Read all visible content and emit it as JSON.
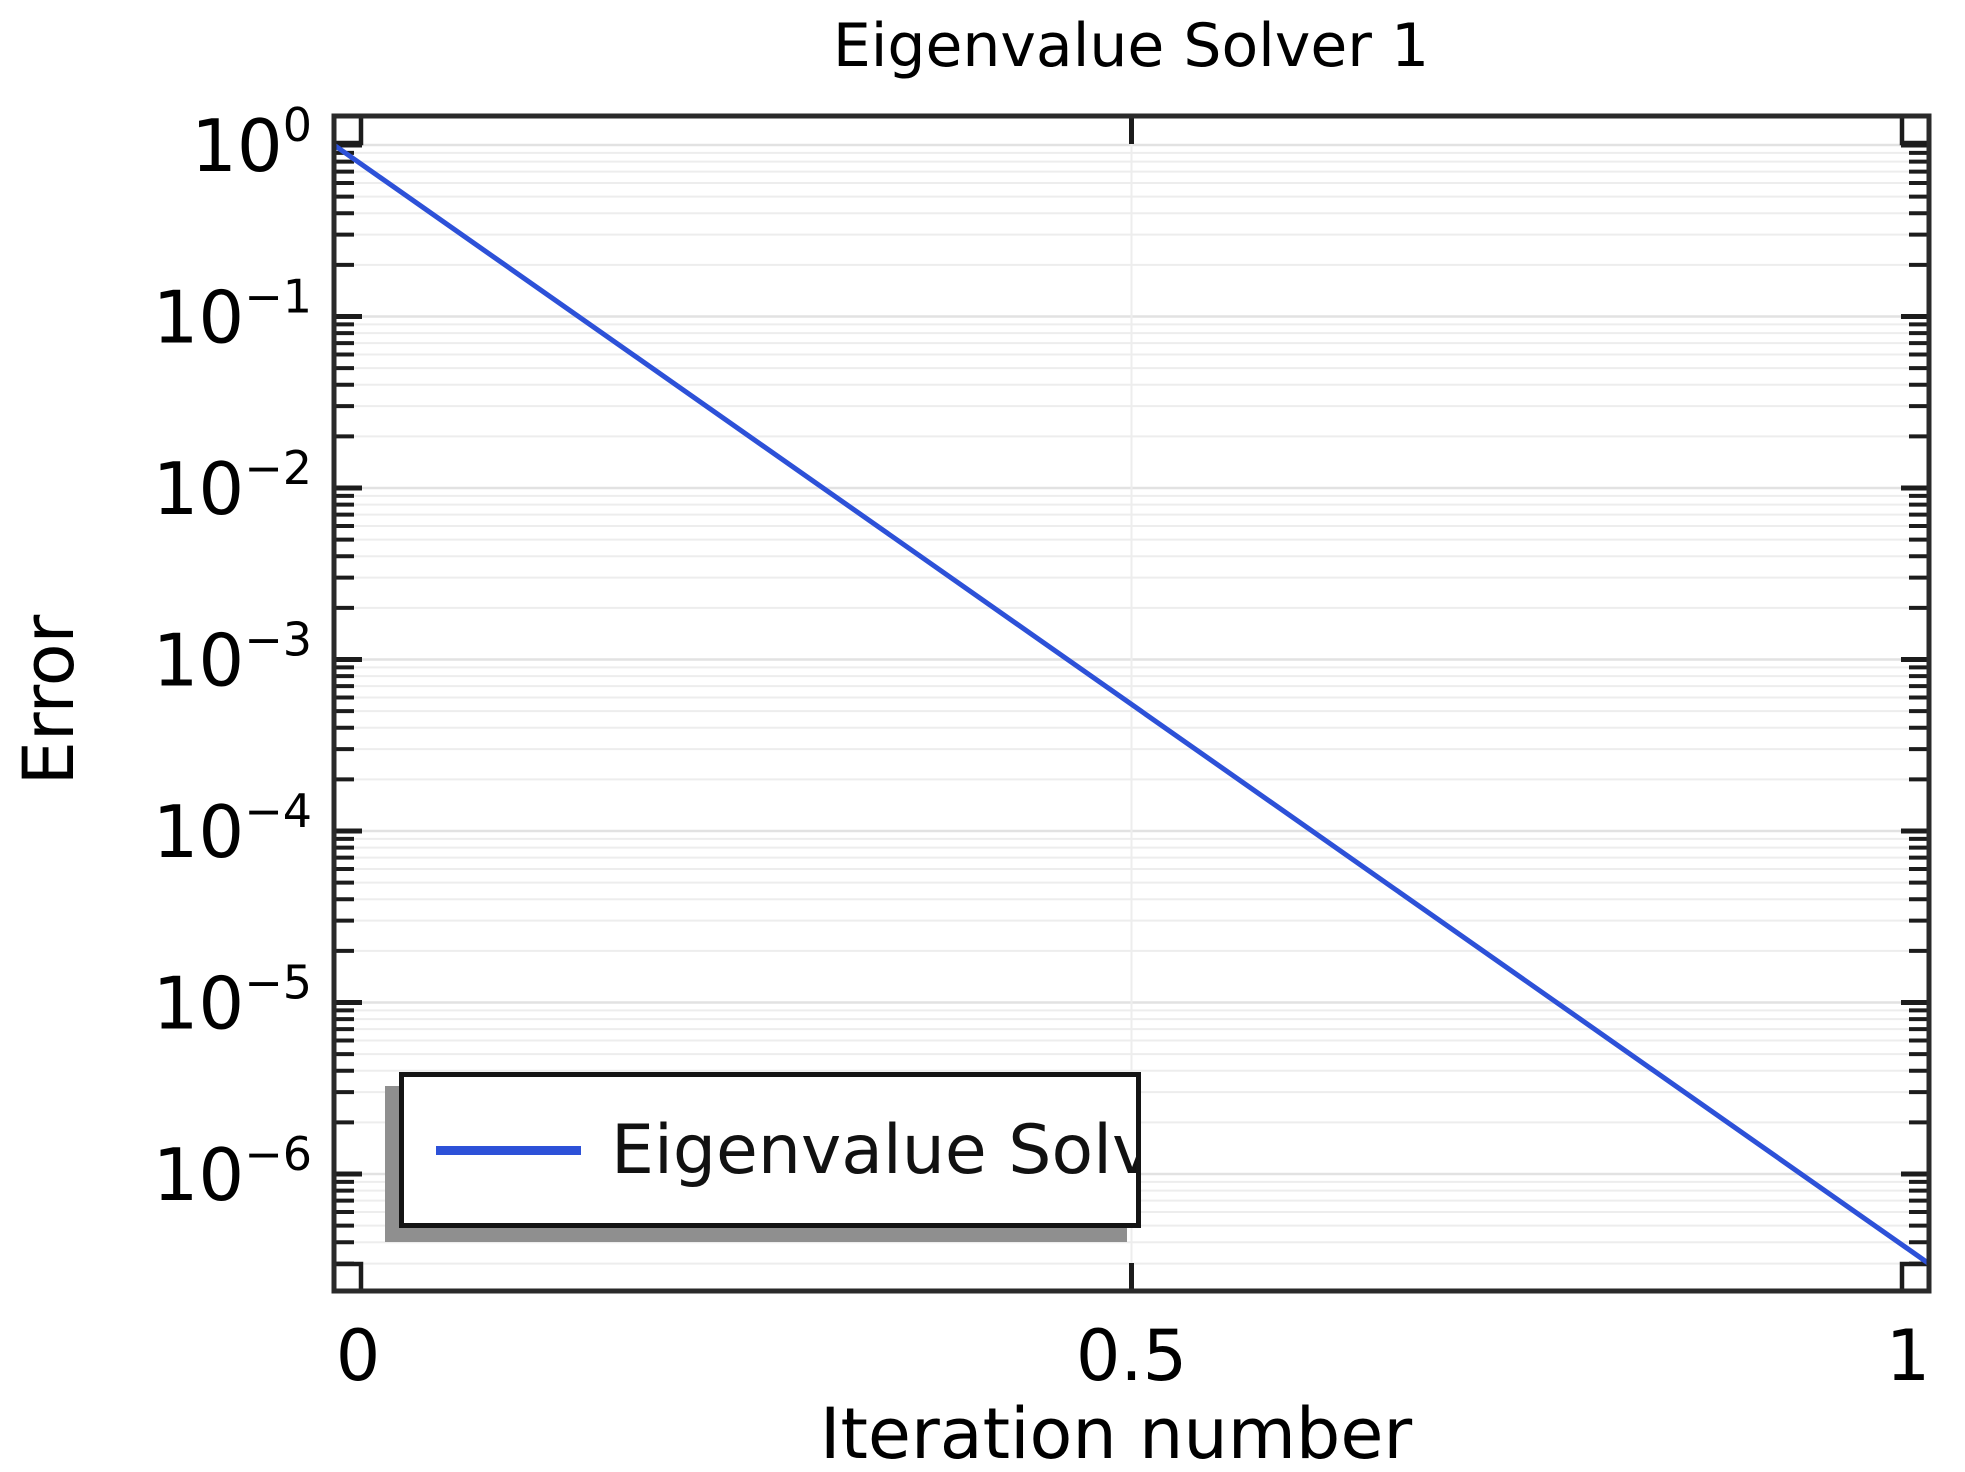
{
  "page": {
    "background": "#ffffff"
  },
  "chart_data": {
    "type": "line",
    "title": "Eigenvalue Solver 1",
    "xlabel": "Iteration number",
    "ylabel": "Error",
    "x_scale": "linear",
    "y_scale": "log",
    "xlim": [
      0,
      1
    ],
    "ylim": [
      2e-07,
      1.5
    ],
    "x_tick_values": [
      0,
      0.5,
      1
    ],
    "x_tick_labels": [
      "0",
      "0.5",
      "1"
    ],
    "y_tick_exponents": [
      0,
      -1,
      -2,
      -3,
      -4,
      -5,
      -6
    ],
    "y_tick_labels": [
      "10^0",
      "10^-1",
      "10^-2",
      "10^-3",
      "10^-4",
      "10^-5",
      "10^-6"
    ],
    "grid": {
      "horizontal": "log major and minor lines",
      "vertical_at": [
        0.5
      ],
      "on": true
    },
    "legend": {
      "label": "Eigenvalue Solv",
      "position": "bottom-left"
    },
    "series": [
      {
        "name": "Eigenvalue Solv",
        "color": "#2d51d8",
        "points": [
          {
            "x": 0,
            "y": 1.0
          },
          {
            "x": 1,
            "y": 3e-07
          }
        ]
      }
    ]
  },
  "colors": {
    "frame": "#2a2a2a",
    "tick": "#1c1c1c",
    "grid_minor": "#ededed",
    "grid_major": "#e2e2e2",
    "line": "#2d51d8",
    "legend_border": "#141414",
    "legend_shadow": "#8f8f8f",
    "text": "#000000",
    "background": "#ffffff"
  }
}
